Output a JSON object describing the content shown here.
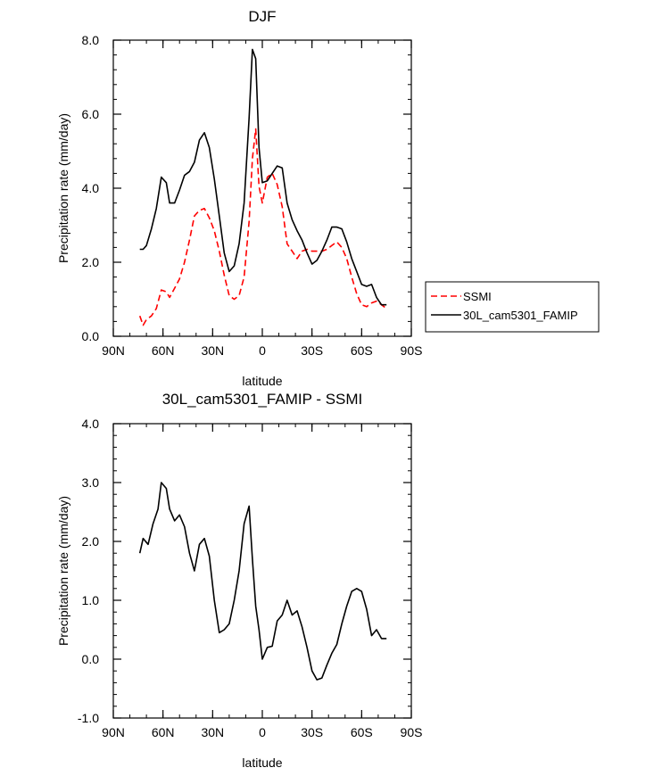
{
  "chart_data": [
    {
      "type": "line",
      "title": "DJF",
      "xlabel": "latitude",
      "ylabel": "Precipitation rate (mm/day)",
      "xlim": [
        -90,
        90
      ],
      "ylim": [
        0,
        8
      ],
      "x_ticks": [
        -90,
        -60,
        -30,
        0,
        30,
        60,
        90
      ],
      "x_tick_labels": [
        "90N",
        "60N",
        "30N",
        "0",
        "30S",
        "60S",
        "90S"
      ],
      "y_ticks": [
        0,
        2,
        4,
        6,
        8
      ],
      "y_tick_labels": [
        "0.0",
        "2.0",
        "4.0",
        "6.0",
        "8.0"
      ],
      "legend": {
        "position": "outside-right",
        "entries": [
          "SSMI",
          "30L_cam5301_FAMIP"
        ]
      },
      "series": [
        {
          "name": "SSMI",
          "color": "#ff0000",
          "style": "dashed",
          "x": [
            -74,
            -72,
            -70,
            -67,
            -64,
            -61,
            -58,
            -56,
            -53,
            -50,
            -47,
            -44,
            -41,
            -38,
            -35,
            -32,
            -29,
            -26,
            -23,
            -20,
            -17,
            -14,
            -11,
            -8,
            -6,
            -4,
            -2,
            0,
            3,
            6,
            9,
            12,
            15,
            18,
            21,
            24,
            27,
            30,
            33,
            36,
            39,
            42,
            45,
            48,
            51,
            54,
            57,
            60,
            63,
            66,
            69,
            72,
            75
          ],
          "values": [
            0.55,
            0.3,
            0.45,
            0.55,
            0.75,
            1.25,
            1.2,
            1.05,
            1.3,
            1.55,
            2.0,
            2.6,
            3.25,
            3.4,
            3.45,
            3.2,
            2.85,
            2.3,
            1.65,
            1.1,
            1.0,
            1.1,
            1.6,
            3.1,
            4.8,
            5.6,
            4.05,
            3.6,
            4.3,
            4.4,
            4.1,
            3.5,
            2.5,
            2.3,
            2.1,
            2.3,
            2.35,
            2.3,
            2.3,
            2.3,
            2.35,
            2.45,
            2.55,
            2.4,
            2.1,
            1.6,
            1.15,
            0.85,
            0.8,
            0.9,
            0.95,
            0.85,
            0.75
          ]
        },
        {
          "name": "30L_cam5301_FAMIP",
          "color": "#000000",
          "style": "solid",
          "x": [
            -74,
            -72,
            -70,
            -67,
            -64,
            -61,
            -58,
            -56,
            -53,
            -50,
            -47,
            -44,
            -41,
            -38,
            -35,
            -32,
            -29,
            -26,
            -23,
            -20,
            -17,
            -14,
            -11,
            -8,
            -6,
            -4,
            -2,
            0,
            3,
            6,
            9,
            12,
            15,
            18,
            21,
            24,
            27,
            30,
            33,
            36,
            39,
            42,
            45,
            48,
            51,
            54,
            57,
            60,
            63,
            66,
            69,
            72,
            75
          ],
          "values": [
            2.35,
            2.35,
            2.45,
            2.9,
            3.45,
            4.3,
            4.15,
            3.6,
            3.6,
            3.95,
            4.35,
            4.45,
            4.7,
            5.3,
            5.5,
            5.1,
            4.25,
            3.25,
            2.25,
            1.75,
            1.9,
            2.5,
            3.6,
            5.9,
            7.75,
            7.5,
            5.1,
            4.15,
            4.2,
            4.4,
            4.6,
            4.55,
            3.6,
            3.15,
            2.85,
            2.6,
            2.25,
            1.95,
            2.05,
            2.3,
            2.6,
            2.95,
            2.95,
            2.9,
            2.55,
            2.1,
            1.75,
            1.4,
            1.35,
            1.4,
            1.05,
            0.85,
            0.85
          ]
        }
      ]
    },
    {
      "type": "line",
      "title": "30L_cam5301_FAMIP - SSMI",
      "xlabel": "latitude",
      "ylabel": "Precipitation rate (mm/day)",
      "xlim": [
        -90,
        90
      ],
      "ylim": [
        -1,
        4
      ],
      "x_ticks": [
        -90,
        -60,
        -30,
        0,
        30,
        60,
        90
      ],
      "x_tick_labels": [
        "90N",
        "60N",
        "30N",
        "0",
        "30S",
        "60S",
        "90S"
      ],
      "y_ticks": [
        -1,
        0,
        1,
        2,
        3,
        4
      ],
      "y_tick_labels": [
        "-1.0",
        "0.0",
        "1.0",
        "2.0",
        "3.0",
        "4.0"
      ],
      "series": [
        {
          "color": "#000000",
          "style": "solid",
          "x": [
            -74,
            -72,
            -69,
            -66,
            -63,
            -61,
            -58,
            -56,
            -53,
            -50,
            -47,
            -44,
            -41,
            -38,
            -35,
            -32,
            -29,
            -26,
            -23,
            -20,
            -17,
            -14,
            -11,
            -8,
            -6,
            -4,
            -2,
            0,
            3,
            6,
            9,
            12,
            15,
            18,
            21,
            24,
            27,
            30,
            33,
            36,
            39,
            42,
            45,
            48,
            51,
            54,
            57,
            60,
            63,
            66,
            69,
            72,
            75
          ],
          "values": [
            1.8,
            2.05,
            1.95,
            2.3,
            2.55,
            3.0,
            2.9,
            2.55,
            2.35,
            2.45,
            2.25,
            1.8,
            1.5,
            1.95,
            2.05,
            1.75,
            1.0,
            0.45,
            0.5,
            0.6,
            1.0,
            1.5,
            2.3,
            2.6,
            1.7,
            0.9,
            0.5,
            0.0,
            0.2,
            0.22,
            0.65,
            0.75,
            1.0,
            0.75,
            0.82,
            0.55,
            0.2,
            -0.2,
            -0.35,
            -0.32,
            -0.1,
            0.1,
            0.25,
            0.6,
            0.9,
            1.15,
            1.2,
            1.15,
            0.85,
            0.4,
            0.5,
            0.35,
            0.35
          ]
        }
      ]
    }
  ]
}
